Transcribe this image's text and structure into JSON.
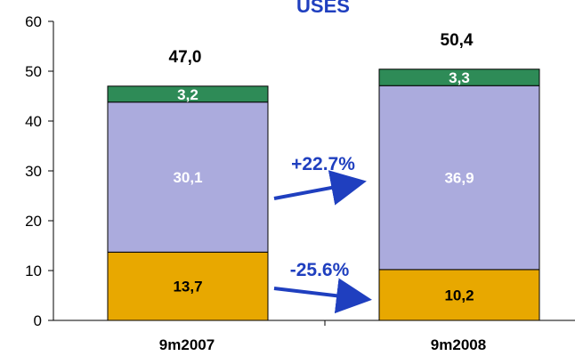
{
  "chart_data": {
    "type": "bar",
    "stacked": true,
    "title": "USES",
    "categories": [
      "9m2007",
      "9m2008"
    ],
    "series": [
      {
        "values": [
          13.7,
          10.2
        ],
        "labels": [
          "13,7",
          "10,2"
        ],
        "color": "#E8A800",
        "label_color": "#000000"
      },
      {
        "values": [
          30.1,
          36.9
        ],
        "labels": [
          "30,1",
          "36,9"
        ],
        "color": "#ABABDD",
        "label_color": "#FFFFFF"
      },
      {
        "values": [
          3.2,
          3.3
        ],
        "labels": [
          "3,2",
          "3,3"
        ],
        "color": "#2E8B57",
        "label_color": "#FFFFFF"
      }
    ],
    "totals": [
      "47,0",
      "50,4"
    ],
    "ylim": [
      0,
      60
    ],
    "yticks": [
      0,
      10,
      20,
      30,
      40,
      50,
      60
    ],
    "annotations": [
      {
        "text": "+22.7%",
        "color": "#1F3FBF"
      },
      {
        "text": "-25.6%",
        "color": "#1F3FBF"
      }
    ],
    "title_color": "#1F3FBF",
    "grid": false
  }
}
